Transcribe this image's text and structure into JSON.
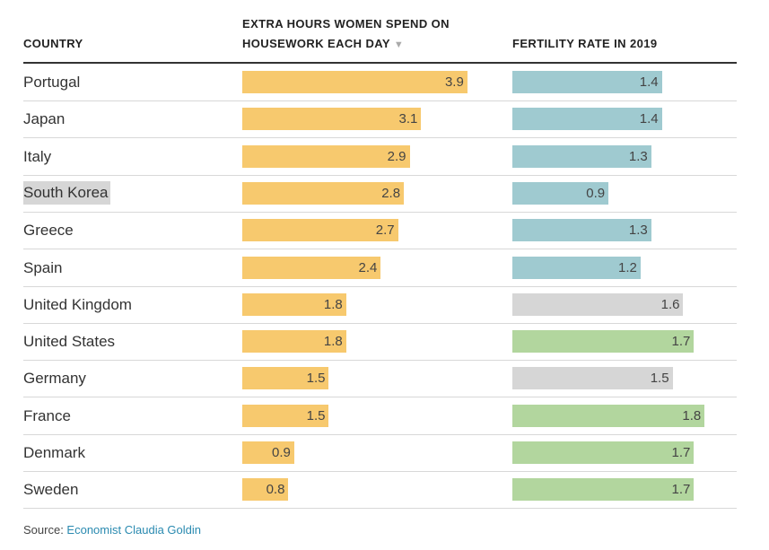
{
  "headers": {
    "country": "COUNTRY",
    "hours_line1": "EXTRA HOURS WOMEN SPEND ON",
    "hours_line2": "HOUSEWORK EACH DAY",
    "fertility": "FERTILITY RATE IN 2019"
  },
  "icons": {
    "sort": "sort-descending-icon"
  },
  "colors": {
    "hours_bar": "#f7c96e",
    "fertility_low": "#9fcad0",
    "fertility_mid": "#d6d6d6",
    "fertility_high": "#b2d69e"
  },
  "chart_data": {
    "type": "bar",
    "categories": [
      "Portugal",
      "Japan",
      "Italy",
      "South Korea",
      "Greece",
      "Spain",
      "United Kingdom",
      "United States",
      "Germany",
      "France",
      "Denmark",
      "Sweden"
    ],
    "highlighted": "South Korea",
    "series": [
      {
        "name": "EXTRA HOURS WOMEN SPEND ON HOUSEWORK EACH DAY",
        "values": [
          3.9,
          3.1,
          2.9,
          2.8,
          2.7,
          2.4,
          1.8,
          1.8,
          1.5,
          1.5,
          0.9,
          0.8
        ],
        "xlim": [
          0,
          4.4
        ]
      },
      {
        "name": "FERTILITY RATE IN 2019",
        "values": [
          1.4,
          1.4,
          1.3,
          0.9,
          1.3,
          1.2,
          1.6,
          1.7,
          1.5,
          1.8,
          1.7,
          1.7
        ],
        "xlim": [
          0,
          2.1
        ]
      }
    ],
    "fertility_color_groups": [
      "low",
      "low",
      "low",
      "low",
      "low",
      "low",
      "mid",
      "high",
      "mid",
      "high",
      "high",
      "high"
    ],
    "sort": "descending by extra hours"
  },
  "source": {
    "label": "Source: ",
    "link": "Economist Claudia Goldin"
  }
}
